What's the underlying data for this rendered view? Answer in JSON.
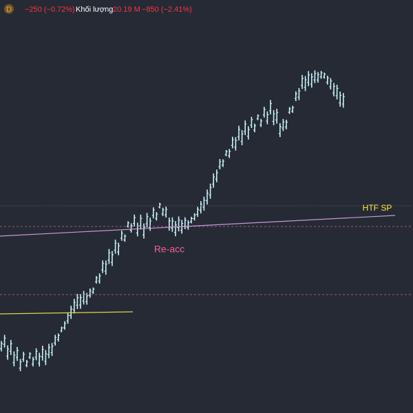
{
  "header": {
    "interval": "D",
    "change": "−250 (−0.72%)",
    "volume_label": "Khối lượng",
    "volume": "20.19 M",
    "volume_change": "−850 (−2.41%)"
  },
  "annotations": {
    "htf_sp": "HTF SP",
    "re_acc": "Re-acc"
  }
}
